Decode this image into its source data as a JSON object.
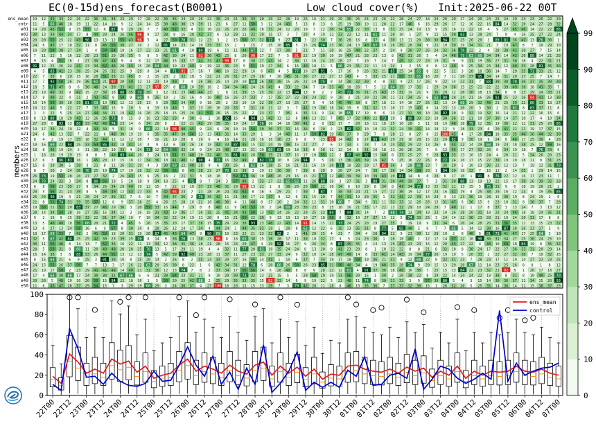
{
  "header": {
    "title_left": "EC(0-15d)ens_forecast(B0001)",
    "title_mid": "Low cloud cover(%)",
    "title_right": "Init:2025-06-22 00T"
  },
  "heatmap": {
    "ylabel": "members",
    "rows": [
      "ens_mean",
      "cntr",
      "e01",
      "e02",
      "e03",
      "e04",
      "e05",
      "e06",
      "e07",
      "e08",
      "e09",
      "e10",
      "e11",
      "e12",
      "e13",
      "e14",
      "e15",
      "e16",
      "e17",
      "e18",
      "e19",
      "e20",
      "e21",
      "e22",
      "e23",
      "e24",
      "e25",
      "e26",
      "e27",
      "e28",
      "e29",
      "e30",
      "e31",
      "e32",
      "e33",
      "e34",
      "e35",
      "e36",
      "e37",
      "e38",
      "e39",
      "e40",
      "e41",
      "e42",
      "e43",
      "e44",
      "e45",
      "e46",
      "e47",
      "e48",
      "e49",
      "e50"
    ],
    "n_columns": 61,
    "colormap": [
      "#f1faee",
      "#d9f0d3",
      "#bfe5b8",
      "#a1d99b",
      "#7fc67c",
      "#5aae61",
      "#3b9352",
      "#1f7a3d",
      "#0b5e2a",
      "#00441b"
    ],
    "highlight_color": "#d73027",
    "highlights": [
      {
        "row": "e02",
        "col": 12,
        "value": 96
      },
      {
        "row": "e03",
        "col": 12,
        "value": 96
      },
      {
        "row": "e06",
        "col": 19,
        "value": 92
      },
      {
        "row": "e06",
        "col": 25,
        "value": 90
      },
      {
        "row": "e06",
        "col": 30,
        "value": 91
      },
      {
        "row": "e07",
        "col": 22,
        "value": 99
      },
      {
        "row": "e09",
        "col": 17,
        "value": 91
      },
      {
        "row": "e11",
        "col": 9,
        "value": 97
      },
      {
        "row": "e12",
        "col": 14,
        "value": 97
      },
      {
        "row": "e14",
        "col": 57,
        "value": 94
      },
      {
        "row": "e20",
        "col": 16,
        "value": 98
      },
      {
        "row": "e21",
        "col": 47,
        "value": 100
      },
      {
        "row": "e22",
        "col": 34,
        "value": 95
      },
      {
        "row": "e27",
        "col": 40,
        "value": 91
      },
      {
        "row": "e31",
        "col": 24,
        "value": 98
      },
      {
        "row": "e32",
        "col": 16,
        "value": 93
      },
      {
        "row": "e38",
        "col": 31,
        "value": 91
      },
      {
        "row": "e41",
        "col": 21,
        "value": 96
      },
      {
        "row": "e47",
        "col": 54,
        "value": 92
      },
      {
        "row": "e49",
        "col": 27,
        "value": 92
      },
      {
        "row": "e50",
        "col": 21,
        "value": 100
      }
    ]
  },
  "colorbar": {
    "ticks": [
      "0",
      "10",
      "20",
      "30",
      "40",
      "50",
      "60",
      "70",
      "80",
      "90",
      "99"
    ]
  },
  "legend": {
    "ens_mean": "ens_mean",
    "control": "control"
  },
  "chart_data": {
    "type": "line",
    "title": "",
    "xlabel": "",
    "ylabel": "",
    "ylim": [
      0,
      100
    ],
    "yticks": [
      "0",
      "20",
      "40",
      "60",
      "80",
      "100"
    ],
    "x_tick_labels": [
      "22T00",
      "22T12",
      "23T00",
      "23T12",
      "24T00",
      "24T12",
      "25T00",
      "25T12",
      "26T00",
      "26T12",
      "27T00",
      "27T12",
      "28T00",
      "28T12",
      "29T00",
      "29T12",
      "30T00",
      "30T12",
      "01T00",
      "01T12",
      "02T00",
      "02T12",
      "03T00",
      "03T12",
      "04T00",
      "04T12",
      "05T00",
      "05T12",
      "06T00",
      "06T12",
      "07T00"
    ],
    "grid": "vertical dotted lines every 12h",
    "legend_position": "top-right",
    "series": [
      {
        "name": "ens_mean",
        "color": "#e41a1c",
        "values": [
          19,
          12,
          41,
          33,
          22,
          26,
          22,
          36,
          31,
          34,
          23,
          29,
          17,
          20,
          22,
          30,
          36,
          24,
          29,
          26,
          22,
          30,
          24,
          21,
          30,
          33,
          20,
          29,
          22,
          28,
          19,
          26,
          16,
          21,
          20,
          29,
          30,
          26,
          24,
          23,
          26,
          22,
          28,
          24,
          27,
          18,
          24,
          20,
          29,
          17,
          24,
          20,
          24,
          23,
          24,
          29,
          24,
          23,
          26,
          22,
          20
        ]
      },
      {
        "name": "control",
        "color": "#0000cd",
        "values": [
          11,
          5,
          66,
          46,
          18,
          19,
          11,
          22,
          14,
          10,
          9,
          12,
          24,
          14,
          15,
          30,
          48,
          30,
          19,
          39,
          11,
          23,
          6,
          27,
          11,
          50,
          3,
          12,
          24,
          43,
          5,
          13,
          8,
          13,
          8,
          25,
          19,
          38,
          10,
          11,
          20,
          22,
          17,
          46,
          6,
          16,
          29,
          26,
          17,
          12,
          16,
          22,
          16,
          84,
          14,
          32,
          20,
          24,
          27,
          28,
          32
        ]
      }
    ]
  }
}
